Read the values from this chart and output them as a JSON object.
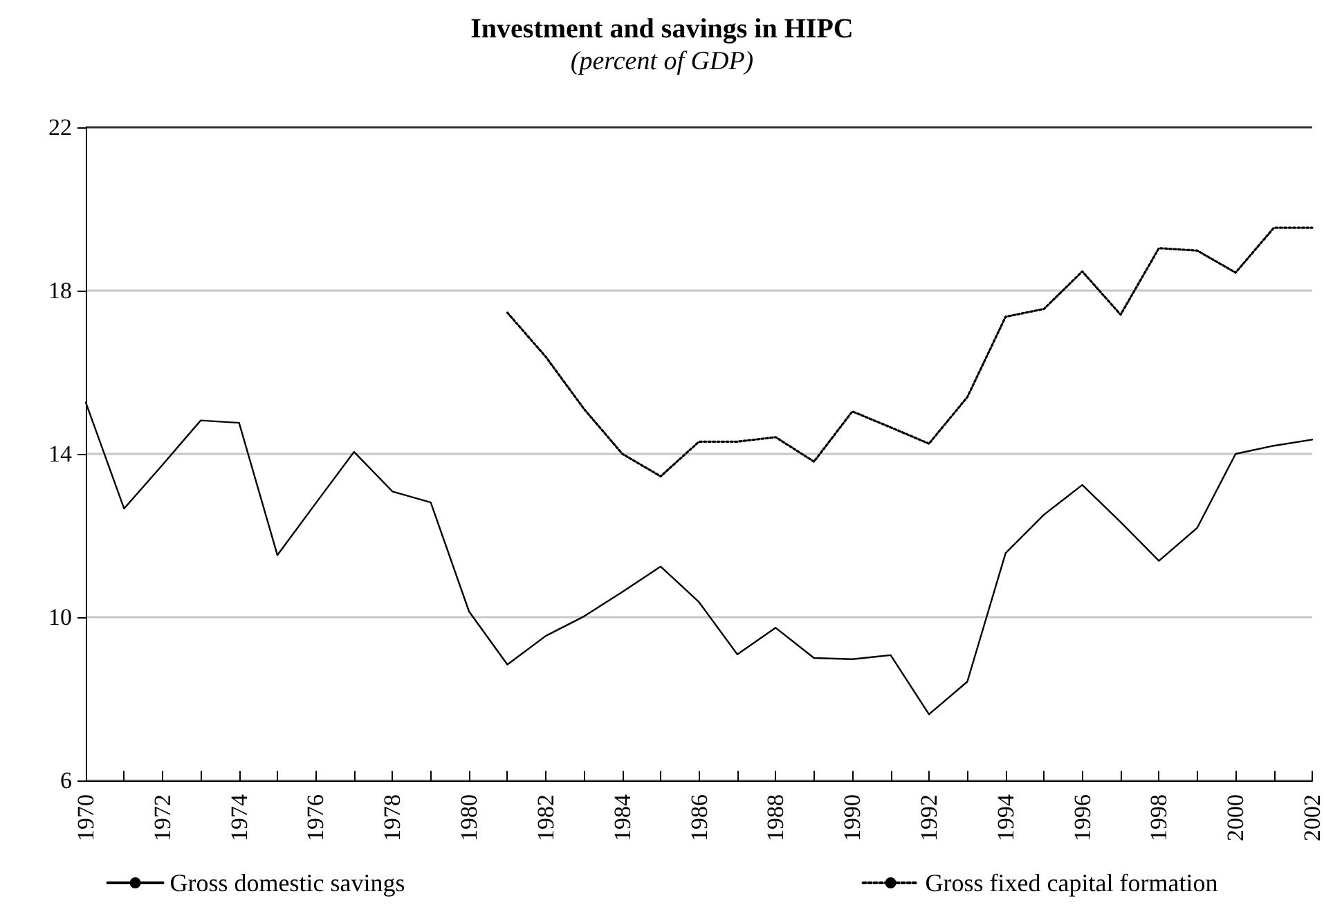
{
  "chart_data": {
    "type": "line",
    "title": "Investment and savings in HIPC",
    "subtitle": "(percent of GDP)",
    "categories": [
      "1970",
      null,
      "1972",
      null,
      "1974",
      null,
      "1976",
      null,
      "1978",
      null,
      "1980",
      null,
      "1982",
      null,
      "1984",
      null,
      "1986",
      null,
      "1988",
      null,
      "1990",
      null,
      "1992",
      null,
      "1994",
      null,
      "1996",
      null,
      "1998",
      null,
      "2000",
      null,
      "2002"
    ],
    "series": [
      {
        "name": "Gross domestic savings",
        "color": "#000000",
        "line_style": "solid",
        "values": [
          15.26,
          12.66,
          13.73,
          14.82,
          14.76,
          11.52,
          12.79,
          14.05,
          13.08,
          12.81,
          10.14,
          8.84,
          9.54,
          10.02,
          10.62,
          11.24,
          10.37,
          9.09,
          9.74,
          9.0,
          8.97,
          9.07,
          7.62,
          8.42,
          11.57,
          12.51,
          13.24,
          12.33,
          11.38,
          12.19,
          14.0,
          14.2,
          14.35
        ]
      },
      {
        "name": "Gross fixed capital formation",
        "color": "#000000",
        "line_style": "dotted",
        "values": [
          null,
          null,
          null,
          null,
          null,
          null,
          null,
          null,
          null,
          null,
          null,
          17.46,
          16.38,
          15.1,
          14.0,
          13.45,
          14.3,
          14.3,
          14.41,
          13.81,
          15.04,
          14.65,
          14.25,
          15.39,
          17.36,
          17.55,
          18.47,
          17.41,
          19.04,
          18.98,
          18.44,
          19.54,
          19.54
        ]
      }
    ],
    "ylim": [
      6,
      22
    ],
    "yticks": [
      6,
      10,
      14,
      18,
      22
    ],
    "grid": "y",
    "legend": "bottom",
    "marker": "none"
  }
}
